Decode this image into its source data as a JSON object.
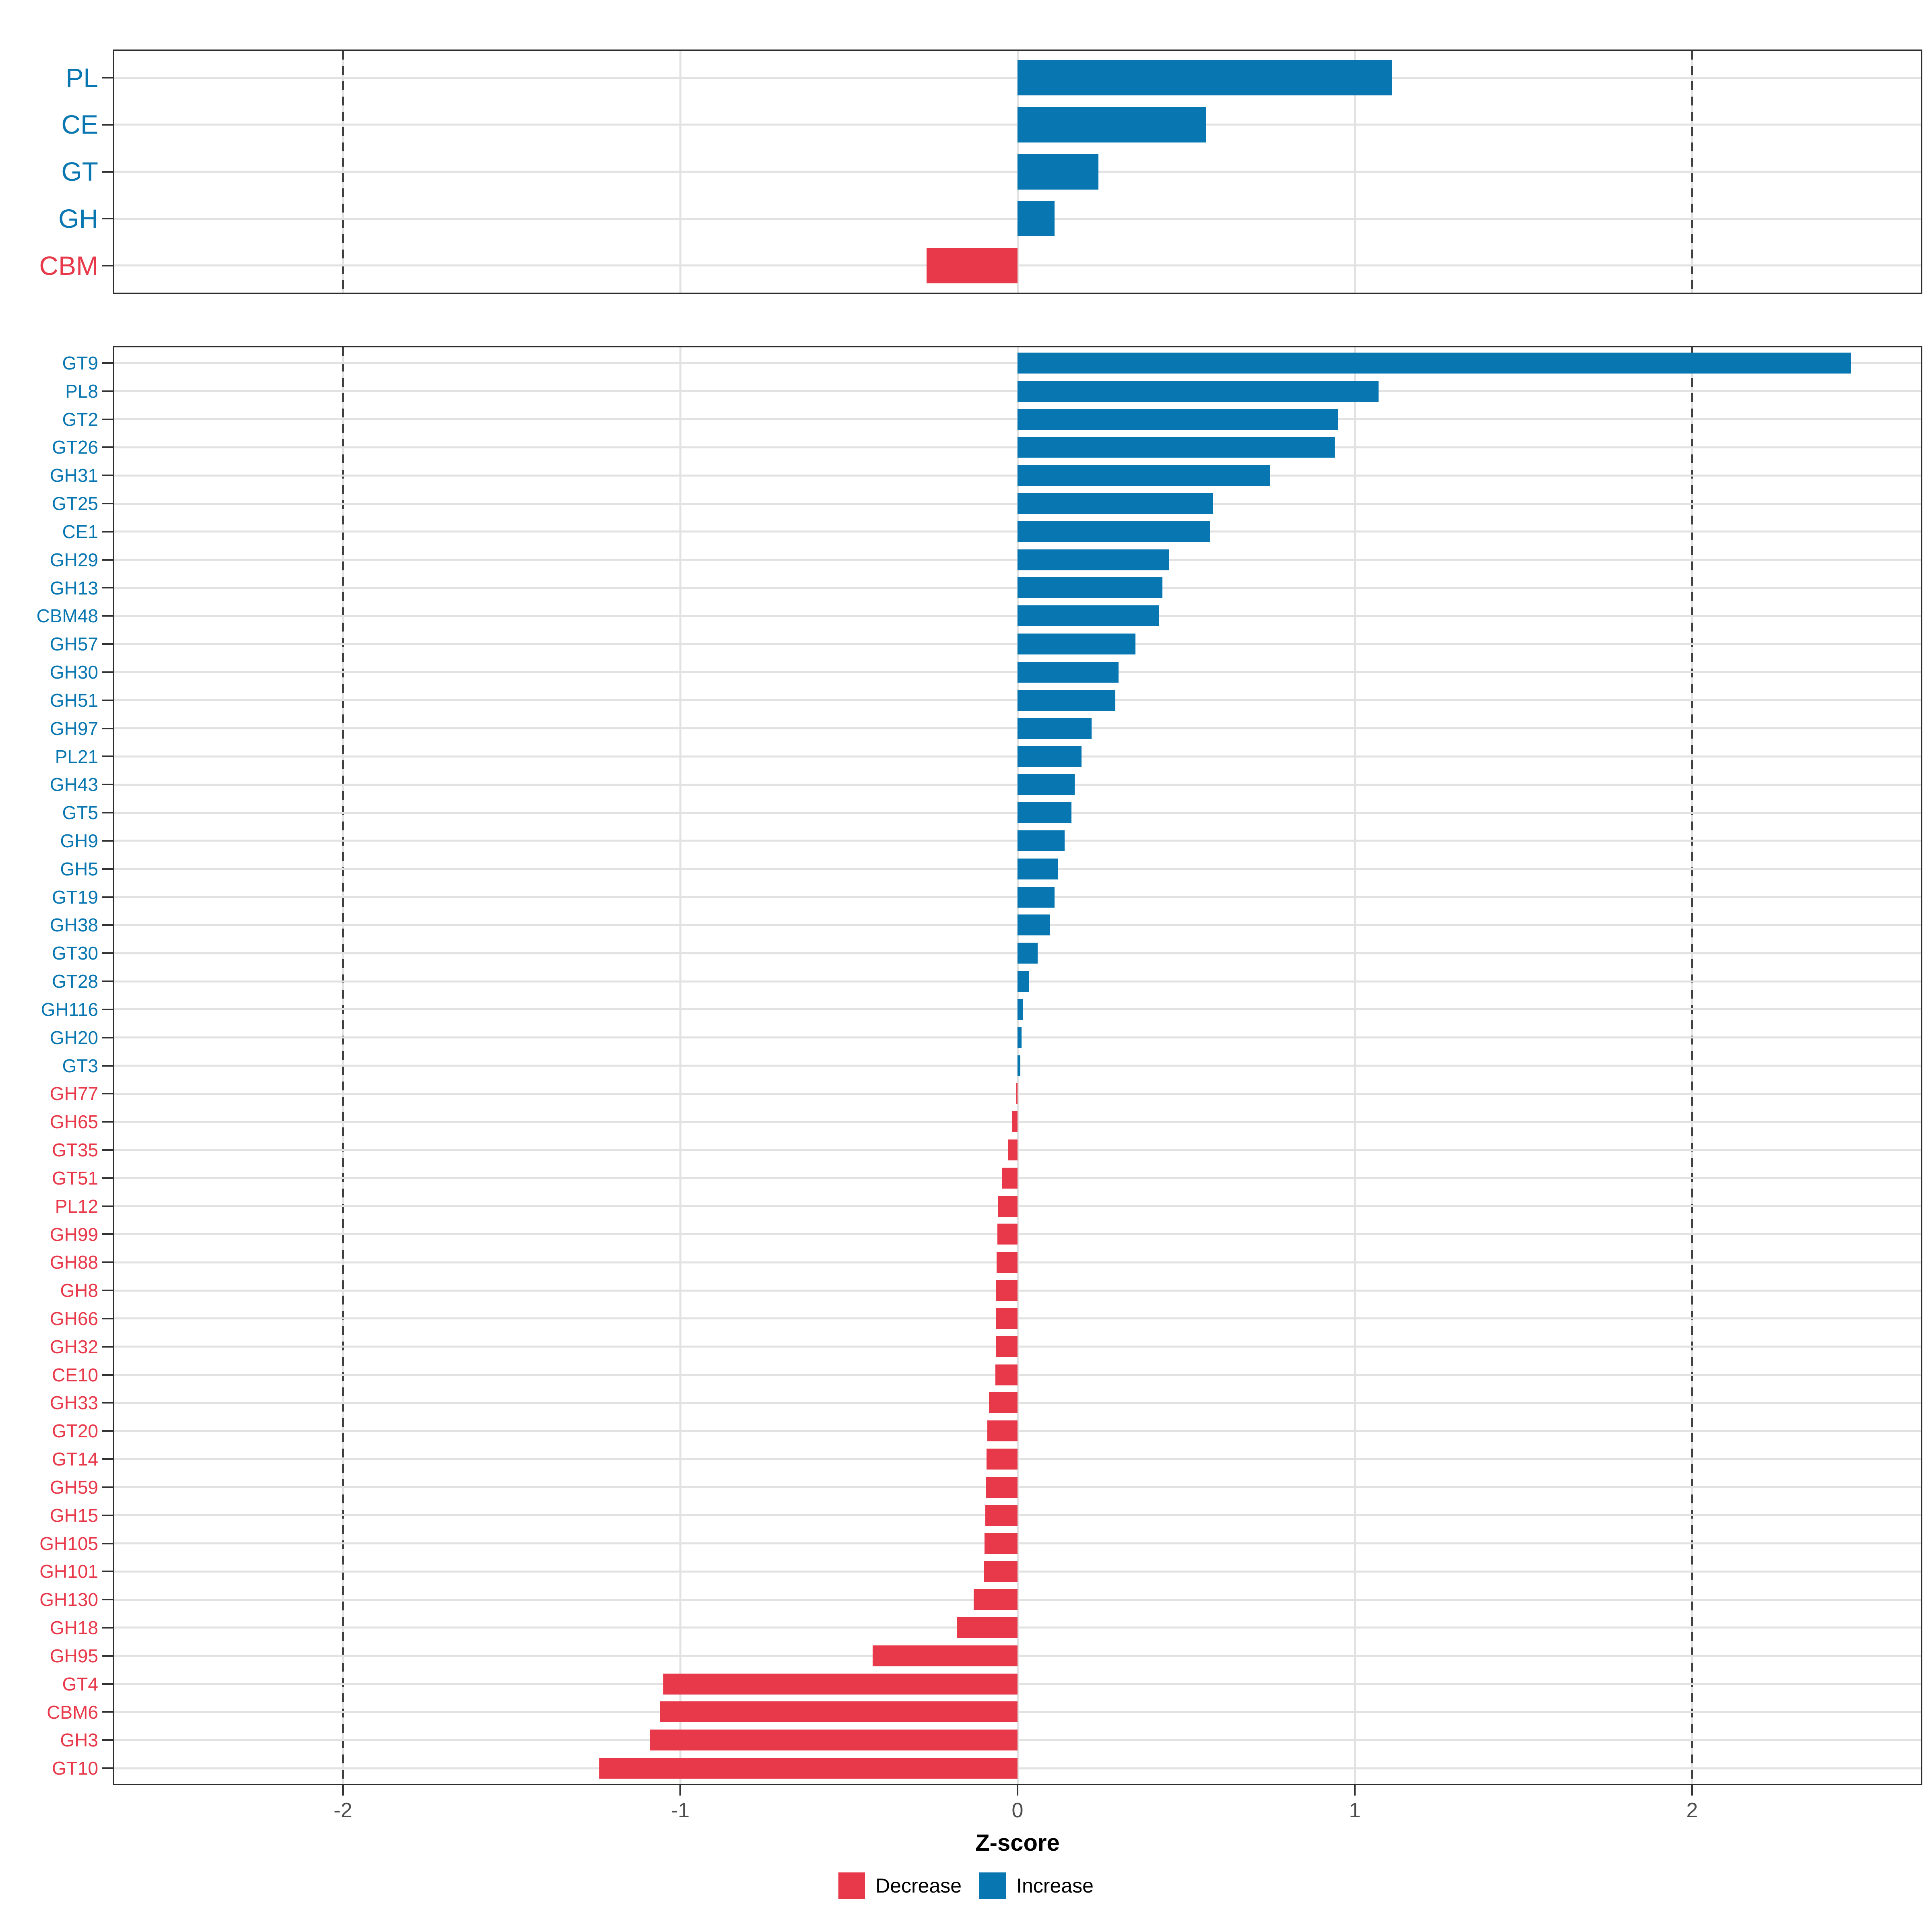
{
  "chart_data": {
    "type": "bar",
    "orientation": "horizontal",
    "title": "",
    "xlabel": "Z-score",
    "ylabel": "",
    "xlim": [
      -2.683,
      2.683
    ],
    "xticks": [
      {
        "value": -2,
        "label": "-2"
      },
      {
        "value": -1,
        "label": "-1"
      },
      {
        "value": 0,
        "label": "0"
      },
      {
        "value": 1,
        "label": "1"
      },
      {
        "value": 2,
        "label": "2"
      }
    ],
    "dashed_lines": [
      -2,
      2
    ],
    "grid": true,
    "legend_position": "bottom",
    "colors": {
      "increase": "#0876b1",
      "decrease": "#e8394a",
      "grid": "#e2e2e2",
      "dashed": "#3f3f3f",
      "panel_border": "#2e2e2e",
      "axis_tick": "#333333",
      "tick_label": "#4d4d4d"
    },
    "legend": [
      {
        "label": "Decrease",
        "color_key": "decrease"
      },
      {
        "label": "Increase",
        "color_key": "increase"
      }
    ],
    "panels": [
      {
        "name": "families",
        "categories": [
          "PL",
          "CE",
          "GT",
          "GH",
          "CBM"
        ],
        "values": [
          1.11,
          0.56,
          0.24,
          0.11,
          -0.27
        ]
      },
      {
        "name": "subfamilies",
        "categories": [
          "GT9",
          "PL8",
          "GT2",
          "GT26",
          "GH31",
          "GT25",
          "CE1",
          "GH29",
          "GH13",
          "CBM48",
          "GH57",
          "GH30",
          "GH51",
          "GH97",
          "PL21",
          "GH43",
          "GT5",
          "GH9",
          "GH5",
          "GT19",
          "GH38",
          "GT30",
          "GT28",
          "GH116",
          "GH20",
          "GT3",
          "GH77",
          "GH65",
          "GT35",
          "GT51",
          "PL12",
          "GH99",
          "GH88",
          "GH8",
          "GH66",
          "GH32",
          "CE10",
          "GH33",
          "GT20",
          "GT14",
          "GH59",
          "GH15",
          "GH105",
          "GH101",
          "GH130",
          "GH18",
          "GH95",
          "GT4",
          "CBM6",
          "GH3",
          "GT10"
        ],
        "values": [
          2.47,
          1.07,
          0.95,
          0.94,
          0.75,
          0.58,
          0.57,
          0.45,
          0.43,
          0.42,
          0.35,
          0.3,
          0.29,
          0.22,
          0.19,
          0.17,
          0.16,
          0.14,
          0.12,
          0.11,
          0.095,
          0.06,
          0.034,
          0.016,
          0.012,
          0.008,
          -0.003,
          -0.016,
          -0.027,
          -0.045,
          -0.058,
          -0.06,
          -0.062,
          -0.063,
          -0.064,
          -0.065,
          -0.066,
          -0.085,
          -0.09,
          -0.092,
          -0.094,
          -0.096,
          -0.098,
          -0.1,
          -0.13,
          -0.18,
          -0.43,
          -1.05,
          -1.06,
          -1.09,
          -1.24
        ]
      }
    ]
  }
}
